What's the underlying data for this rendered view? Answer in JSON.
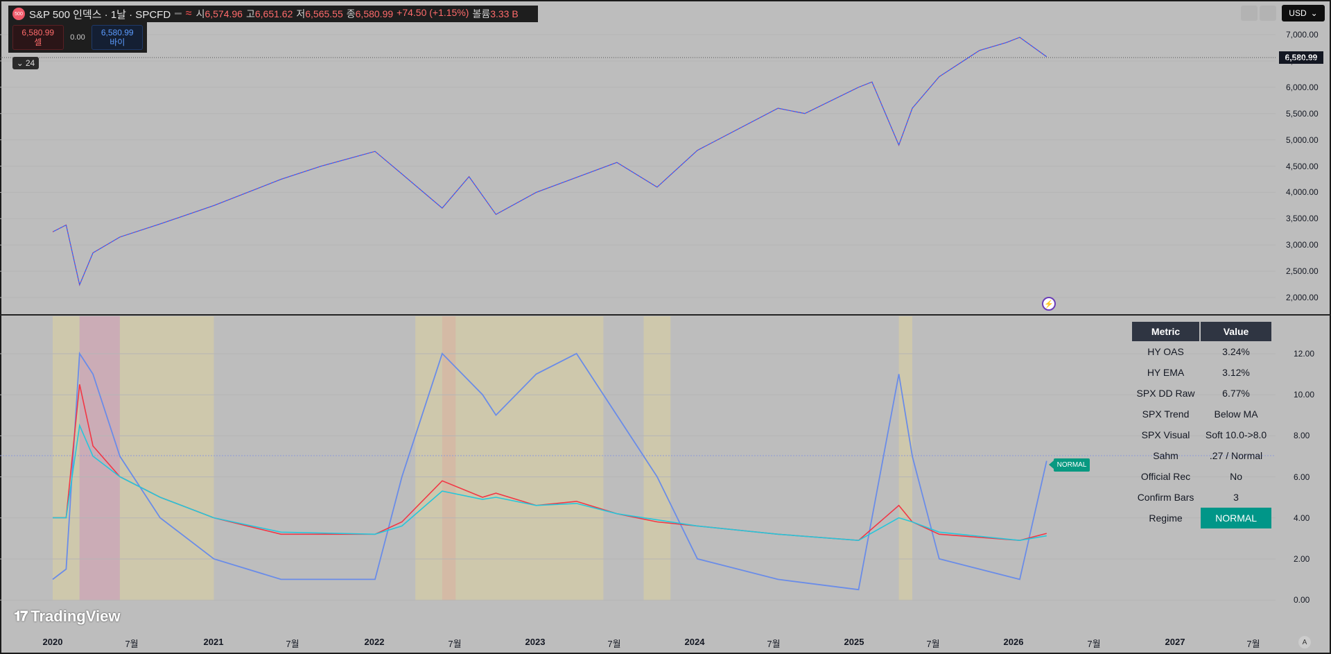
{
  "header": {
    "symbol_title": "S&P 500 인덱스 · 1날 · SPCFD",
    "logo_text": "500",
    "open_label": "시",
    "open": "6,574.96",
    "high_label": "고",
    "high": "6,651.62",
    "low_label": "저",
    "low": "6,565.55",
    "close_label": "종",
    "close": "6,580.99",
    "change": "+74.50 (+1.15%)",
    "volume_label": "볼륨",
    "volume": "3.33 B"
  },
  "trade": {
    "sell_price": "6,580.99",
    "sell_label": "셀",
    "spread": "0.00",
    "buy_price": "6,580.99",
    "buy_label": "바이"
  },
  "collapse": {
    "count": "24"
  },
  "currency": "USD",
  "last_price_tag": "6,580.99",
  "price_axis": [
    "7,000.00",
    "6,500.00",
    "6,000.00",
    "5,500.00",
    "5,000.00",
    "4,500.00",
    "4,000.00",
    "3,500.00",
    "3,000.00",
    "2,500.00",
    "2,000.00"
  ],
  "indicator_axis": [
    "12.00",
    "10.00",
    "8.00",
    "6.00",
    "4.00",
    "2.00",
    "0.00"
  ],
  "time_axis": [
    {
      "label": "2020",
      "bold": true
    },
    {
      "label": "7월",
      "bold": false
    },
    {
      "label": "2021",
      "bold": true
    },
    {
      "label": "7월",
      "bold": false
    },
    {
      "label": "2022",
      "bold": true
    },
    {
      "label": "7월",
      "bold": false
    },
    {
      "label": "2023",
      "bold": true
    },
    {
      "label": "7월",
      "bold": false
    },
    {
      "label": "2024",
      "bold": true
    },
    {
      "label": "7월",
      "bold": false
    },
    {
      "label": "2025",
      "bold": true
    },
    {
      "label": "7월",
      "bold": false
    },
    {
      "label": "2026",
      "bold": true
    },
    {
      "label": "7월",
      "bold": false
    },
    {
      "label": "2027",
      "bold": true
    },
    {
      "label": "7월",
      "bold": false
    }
  ],
  "auto_label": "A",
  "table": {
    "header": {
      "metric": "Metric",
      "value": "Value"
    },
    "rows": [
      {
        "metric": "HY OAS",
        "value": "3.24%"
      },
      {
        "metric": "HY EMA",
        "value": "3.12%"
      },
      {
        "metric": "SPX DD Raw",
        "value": "6.77%"
      },
      {
        "metric": "SPX Trend",
        "value": "Below MA"
      },
      {
        "metric": "SPX Visual",
        "value": "Soft 10.0->8.0"
      },
      {
        "metric": "Sahm",
        "value": ".27 / Normal"
      },
      {
        "metric": "Official Rec",
        "value": "No"
      },
      {
        "metric": "Confirm Bars",
        "value": "3"
      },
      {
        "metric": "Regime",
        "value": "NORMAL"
      }
    ]
  },
  "regime_tag": "NORMAL",
  "brand": "TradingView",
  "colors": {
    "candle_up": "#2962ff",
    "candle_down": "#f23645",
    "drawdown_line": "#6a8ce8",
    "drawdown_alert": "#8e44c8",
    "hy_oas": "#f23645",
    "hy_ema": "#26c6da",
    "regime_normal": "#009688"
  },
  "chart_data": [
    {
      "type": "line",
      "title": "S&P 500 인덱스 · 1날 · SPCFD",
      "x": [
        "2020-01",
        "2020-02",
        "2020-03",
        "2020-04",
        "2020-06",
        "2020-09",
        "2021-01",
        "2021-06",
        "2021-09",
        "2022-01",
        "2022-03",
        "2022-06",
        "2022-08",
        "2022-10",
        "2023-01",
        "2023-07",
        "2023-10",
        "2024-01",
        "2024-04",
        "2024-07",
        "2024-09",
        "2025-01",
        "2025-02",
        "2025-04",
        "2025-05",
        "2025-07",
        "2025-10",
        "2025-12",
        "2026-01",
        "2026-03"
      ],
      "series": [
        {
          "values": [
            3250,
            3380,
            2240,
            2850,
            3150,
            3400,
            3750,
            4250,
            4500,
            4780,
            4350,
            3700,
            4300,
            3580,
            4000,
            4570,
            4100,
            4800,
            5200,
            5600,
            5500,
            6000,
            6100,
            4900,
            5600,
            6200,
            6700,
            6850,
            6950,
            6580
          ]
        }
      ],
      "ylim": [
        1800,
        7300
      ]
    },
    {
      "type": "line",
      "x": [
        "2020-01",
        "2020-02",
        "2020-03",
        "2020-04",
        "2020-06",
        "2020-09",
        "2021-01",
        "2021-06",
        "2022-01",
        "2022-03",
        "2022-06",
        "2022-09",
        "2022-10",
        "2023-01",
        "2023-04",
        "2023-07",
        "2023-10",
        "2024-01",
        "2024-07",
        "2025-01",
        "2025-04",
        "2025-05",
        "2025-07",
        "2026-01",
        "2026-03"
      ],
      "series": [
        {
          "values": [
            4.0,
            4.0,
            10.5,
            7.5,
            6.0,
            5.0,
            4.0,
            3.2,
            3.2,
            3.8,
            5.8,
            5.0,
            5.2,
            4.6,
            4.8,
            4.2,
            3.8,
            3.6,
            3.2,
            2.9,
            4.6,
            3.8,
            3.2,
            2.9,
            3.24
          ]
        },
        {
          "values": [
            4.0,
            4.0,
            8.5,
            7.0,
            6.0,
            5.0,
            4.0,
            3.3,
            3.2,
            3.6,
            5.3,
            4.9,
            5.0,
            4.6,
            4.7,
            4.2,
            3.9,
            3.6,
            3.2,
            2.9,
            4.0,
            3.8,
            3.3,
            2.9,
            3.12
          ]
        },
        {
          "values": [
            1,
            1.5,
            12,
            11,
            7,
            4,
            2,
            1,
            1,
            6,
            12,
            10,
            9,
            11,
            12,
            9,
            6,
            2,
            1,
            0.5,
            11,
            7,
            2,
            1,
            6.77
          ]
        }
      ],
      "ylim": [
        -0.5,
        13
      ]
    }
  ]
}
